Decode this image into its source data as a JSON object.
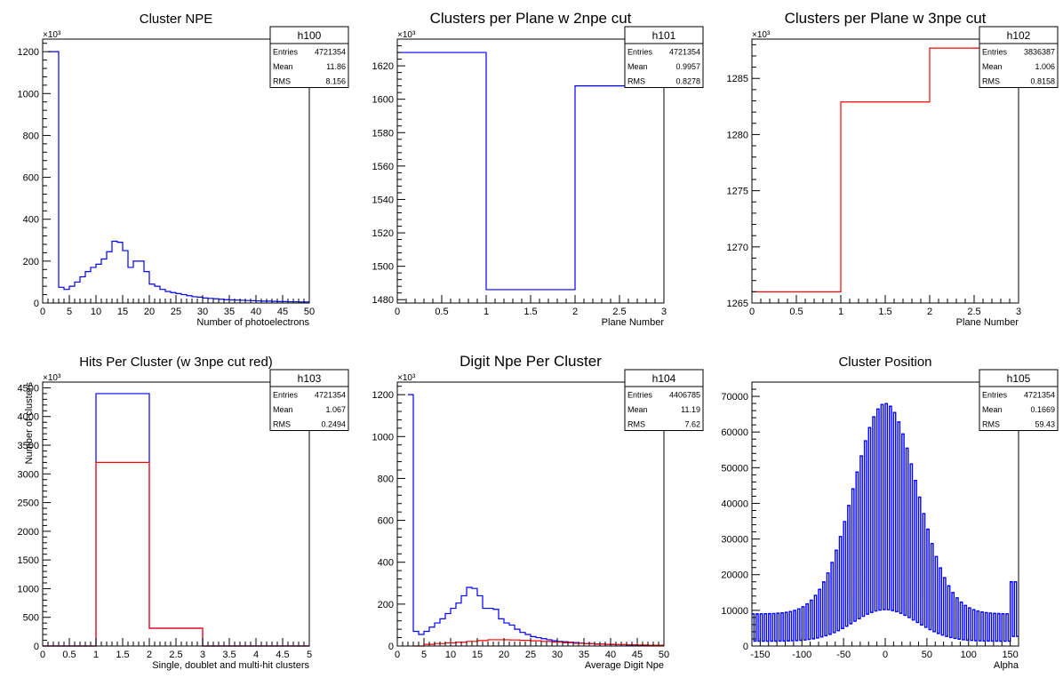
{
  "colors": {
    "blue": "#0000ff",
    "red": "#ff0000",
    "black": "#000000"
  },
  "chart_data": [
    {
      "type": "histogram",
      "title": "Cluster NPE",
      "xlabel": "Number of photoelectrons",
      "ylabel": "",
      "exponent": "×10³",
      "xlim": [
        0,
        50
      ],
      "ylim": [
        0,
        1260
      ],
      "xticks": [
        0,
        5,
        10,
        15,
        20,
        25,
        30,
        35,
        40,
        45,
        50
      ],
      "yticks": [
        0,
        200,
        400,
        600,
        800,
        1000,
        1200
      ],
      "stats": {
        "name": "h100",
        "rows": [
          [
            "Entries",
            "4721354"
          ],
          [
            "Mean",
            "11.86"
          ],
          [
            "RMS",
            "8.156"
          ]
        ]
      },
      "series": [
        {
          "color": "#0000ff",
          "edges": [
            1,
            2,
            3,
            4,
            5,
            6,
            7,
            8,
            9,
            10,
            11,
            12,
            13,
            14,
            15,
            16,
            17,
            18,
            19,
            20,
            21,
            22,
            23,
            24,
            25,
            26,
            27,
            28,
            29,
            30,
            31,
            32,
            33,
            34,
            35,
            36,
            37,
            38,
            39,
            40,
            41,
            42,
            43,
            44,
            45,
            46,
            47,
            48,
            49,
            50
          ],
          "values": [
            1200,
            1200,
            75,
            65,
            80,
            100,
            125,
            150,
            170,
            185,
            210,
            245,
            295,
            290,
            250,
            170,
            200,
            200,
            150,
            90,
            80,
            65,
            55,
            50,
            45,
            40,
            35,
            30,
            28,
            24,
            22,
            20,
            18,
            16,
            15,
            14,
            13,
            12,
            11,
            10,
            9,
            9,
            8,
            7,
            7,
            6,
            6,
            5,
            5
          ]
        }
      ]
    },
    {
      "type": "histogram",
      "title": "Clusters per Plane w 2npe cut",
      "xlabel": "Plane Number",
      "ylabel": "",
      "exponent": "×10³",
      "xlim": [
        0,
        3
      ],
      "ylim": [
        1478,
        1636
      ],
      "xticks": [
        0,
        0.5,
        1,
        1.5,
        2,
        2.5,
        3
      ],
      "yticks": [
        1480,
        1500,
        1520,
        1540,
        1560,
        1580,
        1600,
        1620
      ],
      "stats": {
        "name": "h101",
        "rows": [
          [
            "Entries",
            "4721354"
          ],
          [
            "Mean",
            "0.9957"
          ],
          [
            "RMS",
            "0.8278"
          ]
        ]
      },
      "series": [
        {
          "color": "#0000ff",
          "edges": [
            0,
            1,
            2,
            3
          ],
          "values": [
            1628,
            1486,
            1608
          ]
        }
      ]
    },
    {
      "type": "histogram",
      "title": "Clusters per Plane w 3npe cut",
      "xlabel": "Plane Number",
      "ylabel": "",
      "exponent": "×10³",
      "xlim": [
        0,
        3
      ],
      "ylim": [
        1265,
        1288.5
      ],
      "xticks": [
        0,
        0.5,
        1,
        1.5,
        2,
        2.5,
        3
      ],
      "yticks": [
        1265,
        1270,
        1275,
        1280,
        1285
      ],
      "stats": {
        "name": "h102",
        "rows": [
          [
            "Entries",
            "3836387"
          ],
          [
            "Mean",
            "1.006"
          ],
          [
            "RMS",
            "0.8158"
          ]
        ]
      },
      "series": [
        {
          "color": "#ff0000",
          "edges": [
            0,
            1,
            2,
            3
          ],
          "values": [
            1266,
            1282.9,
            1287.7
          ]
        }
      ]
    },
    {
      "type": "histogram",
      "title": "Hits Per Cluster (w 3npe cut red)",
      "xlabel": "Single, doublet and multi-hit clusters",
      "ylabel": "Number of clusters",
      "exponent": "×10³",
      "xlim": [
        0,
        5
      ],
      "ylim": [
        0,
        4600
      ],
      "xticks": [
        0,
        0.5,
        1,
        1.5,
        2,
        2.5,
        3,
        3.5,
        4,
        4.5,
        5
      ],
      "yticks": [
        0,
        500,
        1000,
        1500,
        2000,
        2500,
        3000,
        3500,
        4000,
        4500
      ],
      "stats": {
        "name": "h103",
        "rows": [
          [
            "Entries",
            "4721354"
          ],
          [
            "Mean",
            "1.067"
          ],
          [
            "RMS",
            "0.2494"
          ]
        ]
      },
      "series": [
        {
          "color": "#0000ff",
          "edges": [
            0,
            1,
            2,
            3,
            5
          ],
          "values": [
            0,
            4400,
            310,
            0
          ]
        },
        {
          "color": "#ff0000",
          "edges": [
            0,
            1,
            2,
            3,
            5
          ],
          "values": [
            0,
            3200,
            310,
            0
          ]
        }
      ]
    },
    {
      "type": "histogram",
      "title": "Digit Npe Per Cluster",
      "xlabel": "Average Digit Npe",
      "ylabel": "",
      "exponent": "×10³",
      "xlim": [
        0,
        50
      ],
      "ylim": [
        0,
        1260
      ],
      "xticks": [
        0,
        5,
        10,
        15,
        20,
        25,
        30,
        35,
        40,
        45,
        50
      ],
      "yticks": [
        0,
        200,
        400,
        600,
        800,
        1000,
        1200
      ],
      "stats": {
        "name": "h104",
        "rows": [
          [
            "Entries",
            "4406785"
          ],
          [
            "Mean",
            "11.19"
          ],
          [
            "RMS",
            "7.62"
          ]
        ]
      },
      "series": [
        {
          "color": "#0000ff",
          "edges": [
            2,
            3,
            4,
            5,
            6,
            7,
            8,
            9,
            10,
            11,
            12,
            13,
            14,
            15,
            16,
            17,
            18,
            19,
            20,
            21,
            22,
            23,
            24,
            25,
            26,
            27,
            28,
            29,
            30,
            31,
            32,
            33,
            34,
            35,
            36,
            37,
            38,
            39,
            40,
            41,
            42,
            43,
            44,
            45,
            46,
            47,
            48,
            49,
            50
          ],
          "values": [
            1200,
            70,
            55,
            70,
            90,
            110,
            130,
            155,
            180,
            205,
            240,
            280,
            275,
            240,
            180,
            180,
            175,
            130,
            110,
            100,
            80,
            65,
            55,
            45,
            40,
            35,
            30,
            25,
            22,
            20,
            18,
            16,
            14,
            12,
            11,
            10,
            9,
            8,
            7,
            6,
            6,
            5,
            5,
            4,
            4,
            3,
            3,
            3
          ]
        },
        {
          "color": "#ff0000",
          "edges": [
            3,
            5,
            7,
            9,
            11,
            13,
            15,
            17,
            19,
            21,
            23,
            25,
            27,
            29,
            31,
            33,
            35,
            37,
            39,
            41,
            43,
            45,
            47,
            50
          ],
          "values": [
            0,
            8,
            12,
            15,
            18,
            22,
            26,
            30,
            30,
            29,
            27,
            25,
            22,
            19,
            16,
            13,
            11,
            9,
            8,
            7,
            6,
            5,
            4
          ]
        }
      ]
    },
    {
      "type": "histogram",
      "title": "Cluster Position",
      "xlabel": "Alpha",
      "ylabel": "",
      "exponent": "",
      "xlim": [
        -160,
        160
      ],
      "ylim": [
        0,
        74000
      ],
      "xticks": [
        -150,
        -100,
        -50,
        0,
        50,
        100,
        150
      ],
      "yticks": [
        0,
        10000,
        20000,
        30000,
        40000,
        50000,
        60000,
        70000
      ],
      "stats": {
        "name": "h105",
        "rows": [
          [
            "Entries",
            "4721354"
          ],
          [
            "Mean",
            "0.1669"
          ],
          [
            "RMS",
            "59.43"
          ]
        ]
      },
      "series": [
        {
          "color": "#0000ff",
          "comb": true,
          "xmin": -160,
          "xmax": 160,
          "bin": 2.5,
          "center": 0,
          "sigma": 38,
          "peak": 68000,
          "base": 9000,
          "low": 0.15,
          "edge_rise": [
            [
              150,
              160,
              18000
            ],
            [
              -160,
              -150,
              9000
            ]
          ]
        }
      ]
    }
  ]
}
